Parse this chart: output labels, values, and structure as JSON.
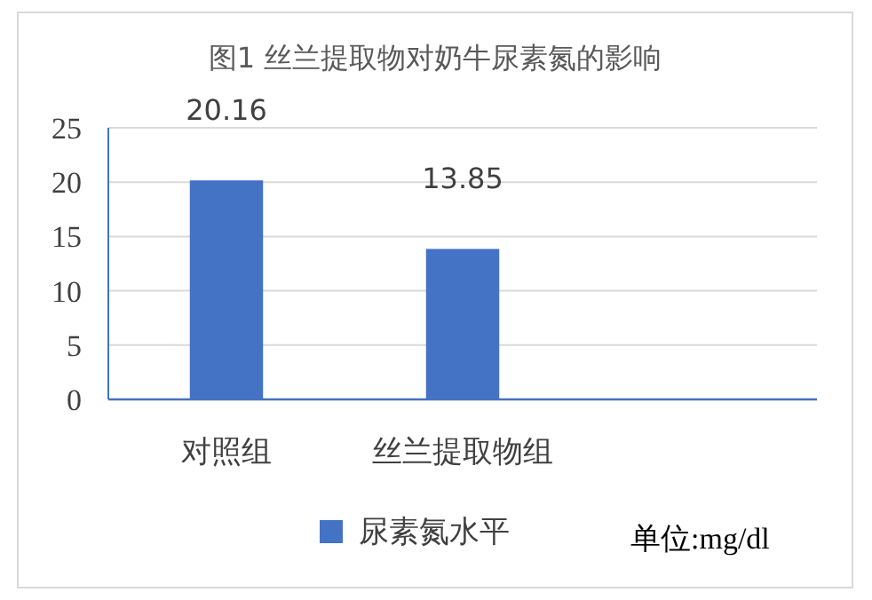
{
  "chart_data": {
    "type": "bar",
    "title": "图1 丝兰提取物对奶牛尿素氮的影响",
    "categories": [
      "对照组",
      "丝兰提取物组",
      null
    ],
    "series": [
      {
        "name": "尿素氮水平",
        "color": "#4472c4",
        "values": [
          20.16,
          13.85,
          null
        ]
      }
    ],
    "ylim": [
      0,
      25
    ],
    "yticks": [
      0,
      5,
      10,
      15,
      20,
      25
    ],
    "grid": "y",
    "legend": "bottom",
    "data_labels": true,
    "annotations": [
      "单位:mg/dl"
    ]
  }
}
